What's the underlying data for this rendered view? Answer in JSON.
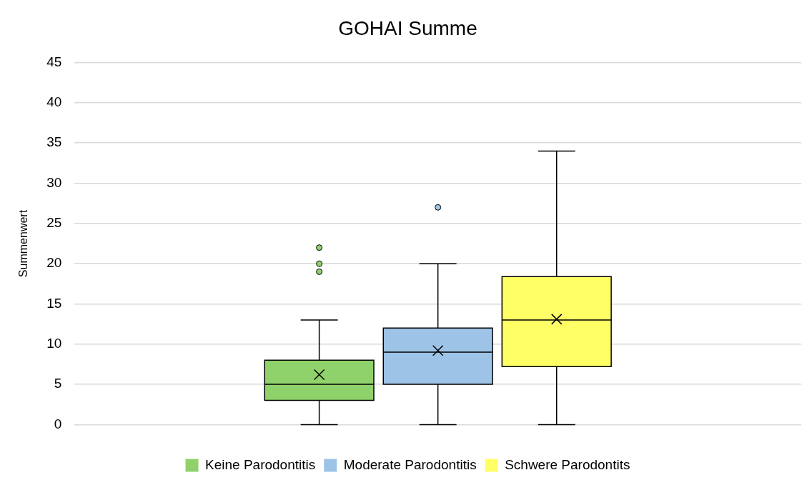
{
  "chart_data": {
    "type": "box",
    "title": "GOHAI Summe",
    "ylabel": "Summenwert",
    "categories": [
      null
    ],
    "series": [
      {
        "name": "Keine Parodontitis",
        "color": "#8fd16a",
        "boxes": [
          {
            "low": 0,
            "q1": 3,
            "median": 5,
            "q3": 8,
            "high": 13,
            "mean": 6.2,
            "outliers": [
              19,
              20,
              22
            ]
          }
        ]
      },
      {
        "name": "Moderate Parodontitis",
        "color": "#9dc3e6",
        "boxes": [
          {
            "low": 0,
            "q1": 5,
            "median": 9,
            "q3": 12,
            "high": 20,
            "mean": 9.2,
            "outliers": [
              27
            ]
          }
        ]
      },
      {
        "name": "Schwere Parodontits",
        "color": "#ffff66",
        "boxes": [
          {
            "low": 0,
            "q1": 7.2,
            "median": 13,
            "q3": 18.4,
            "high": 34,
            "mean": 13.1
          }
        ]
      }
    ],
    "ylim": [
      0,
      45
    ],
    "yticks": [
      0,
      5,
      10,
      15,
      20,
      25,
      30,
      35,
      40,
      45
    ],
    "grid": "y",
    "legend": "bottom"
  }
}
